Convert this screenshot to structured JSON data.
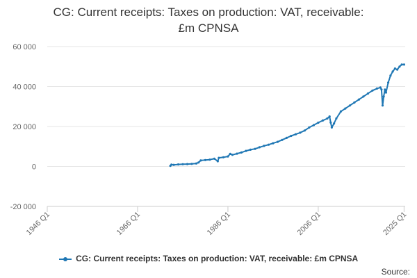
{
  "chart_data": {
    "type": "line",
    "title_line1": "CG: Current receipts: Taxes on production: VAT, receivable:",
    "title_line2": "£m CPNSA",
    "xlabel": "",
    "ylabel": "",
    "x_range": [
      1946,
      2025.25
    ],
    "ylim": [
      -20000,
      60000
    ],
    "y_ticks": [
      -20000,
      0,
      20000,
      40000,
      60000
    ],
    "y_tick_labels": [
      "-20 000",
      "0",
      "20 000",
      "40 000",
      "60 000"
    ],
    "x_ticks": [
      1946,
      1966,
      1986,
      2006,
      2025
    ],
    "x_tick_labels": [
      "1946 Q1",
      "1966 Q1",
      "1986 Q1",
      "2006 Q1",
      "2025 Q1"
    ],
    "grid": "horizontal",
    "legend_position": "bottom",
    "color": "#1f77b4",
    "series": [
      {
        "name": "CG: Current receipts: Taxes on production: VAT, receivable: £m CPNSA",
        "points": [
          [
            1973.25,
            300
          ],
          [
            1973.5,
            900
          ],
          [
            1974,
            800
          ],
          [
            1975,
            1000
          ],
          [
            1976,
            1100
          ],
          [
            1977,
            1200
          ],
          [
            1978,
            1300
          ],
          [
            1979,
            1500
          ],
          [
            1979.5,
            2000
          ],
          [
            1980,
            3000
          ],
          [
            1981,
            3200
          ],
          [
            1982,
            3400
          ],
          [
            1983,
            3900
          ],
          [
            1983.75,
            2600
          ],
          [
            1984,
            4300
          ],
          [
            1985,
            4600
          ],
          [
            1986,
            5000
          ],
          [
            1986.5,
            6300
          ],
          [
            1987,
            5800
          ],
          [
            1988,
            6400
          ],
          [
            1989,
            7000
          ],
          [
            1990,
            7800
          ],
          [
            1991,
            8400
          ],
          [
            1992,
            8800
          ],
          [
            1993,
            9600
          ],
          [
            1994,
            10300
          ],
          [
            1995,
            10900
          ],
          [
            1996,
            11600
          ],
          [
            1997,
            12300
          ],
          [
            1998,
            13300
          ],
          [
            1999,
            14300
          ],
          [
            2000,
            15300
          ],
          [
            2001,
            16100
          ],
          [
            2002,
            16900
          ],
          [
            2003,
            18000
          ],
          [
            2004,
            19500
          ],
          [
            2005,
            20700
          ],
          [
            2006,
            21900
          ],
          [
            2007,
            23000
          ],
          [
            2008,
            24000
          ],
          [
            2008.5,
            25000
          ],
          [
            2008.75,
            22000
          ],
          [
            2009,
            19500
          ],
          [
            2009.5,
            21500
          ],
          [
            2010,
            24000
          ],
          [
            2011,
            27500
          ],
          [
            2012,
            29000
          ],
          [
            2013,
            30500
          ],
          [
            2014,
            32000
          ],
          [
            2015,
            33500
          ],
          [
            2016,
            35000
          ],
          [
            2017,
            36500
          ],
          [
            2018,
            38000
          ],
          [
            2019,
            39000
          ],
          [
            2019.75,
            39500
          ],
          [
            2020,
            38500
          ],
          [
            2020.25,
            30500
          ],
          [
            2020.5,
            35000
          ],
          [
            2020.75,
            38500
          ],
          [
            2021,
            37000
          ],
          [
            2021.5,
            42000
          ],
          [
            2022,
            45500
          ],
          [
            2022.5,
            47500
          ],
          [
            2023,
            49000
          ],
          [
            2023.5,
            48500
          ],
          [
            2024,
            50000
          ],
          [
            2024.5,
            51000
          ],
          [
            2025,
            51000
          ]
        ]
      }
    ]
  },
  "legend": {
    "label": "CG: Current receipts: Taxes on production: VAT, receivable: £m CPNSA"
  },
  "footer": {
    "source_label": "Source:"
  }
}
